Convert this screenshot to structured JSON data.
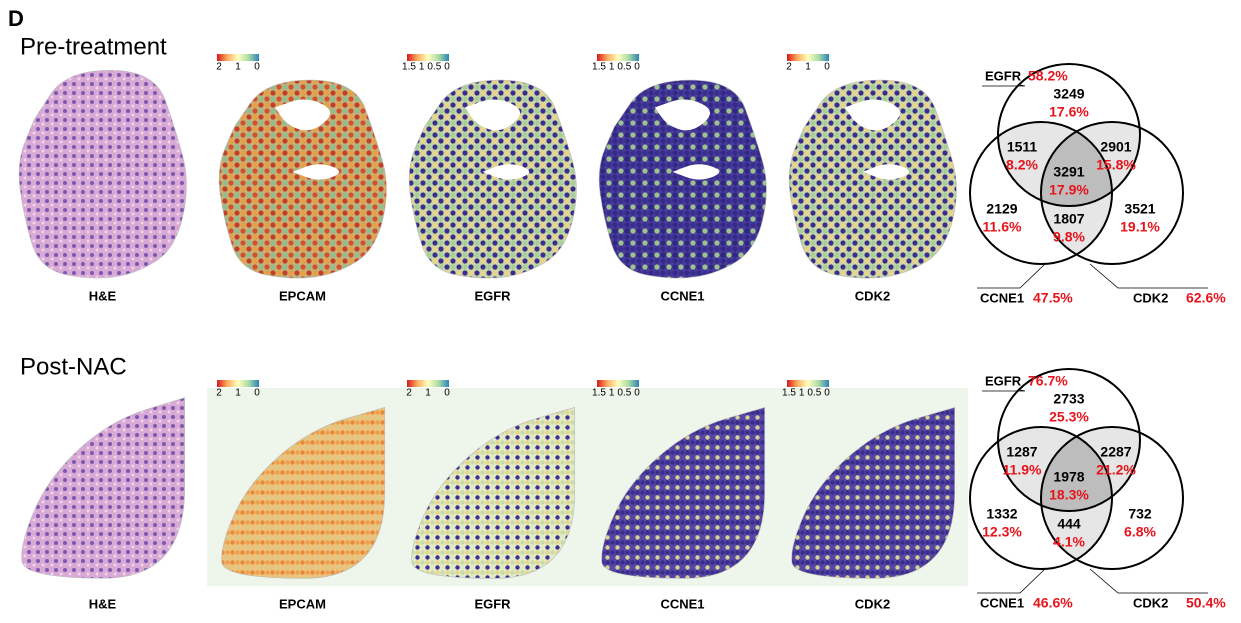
{
  "panel_label": "D",
  "rows": [
    {
      "title": "Pre-treatment",
      "images": [
        {
          "label": "H&E"
        },
        {
          "label": "EPCAM",
          "scale": [
            "2",
            "1",
            "0"
          ]
        },
        {
          "label": "EGFR",
          "scale": [
            "1.5",
            "1",
            "0.5",
            "0"
          ]
        },
        {
          "label": "CCNE1",
          "scale": [
            "1.5",
            "1",
            "0.5",
            "0"
          ]
        },
        {
          "label": "CDK2",
          "scale": [
            "2",
            "1",
            "0"
          ]
        }
      ],
      "venn": {
        "sets": [
          {
            "name": "EGFR",
            "percent": "58.2%"
          },
          {
            "name": "CCNE1",
            "percent": "47.5%"
          },
          {
            "name": "CDK2",
            "percent": "62.6%"
          }
        ],
        "regions": [
          {
            "count": "3249",
            "percent": "17.6%"
          },
          {
            "count": "1511",
            "percent": "8.2%"
          },
          {
            "count": "2901",
            "percent": "15.8%"
          },
          {
            "count": "3291",
            "percent": "17.9%"
          },
          {
            "count": "2129",
            "percent": "11.6%"
          },
          {
            "count": "1807",
            "percent": "9.8%"
          },
          {
            "count": "3521",
            "percent": "19.1%"
          }
        ]
      }
    },
    {
      "title": "Post-NAC",
      "images": [
        {
          "label": "H&E"
        },
        {
          "label": "EPCAM",
          "scale": [
            "2",
            "1",
            "0"
          ]
        },
        {
          "label": "EGFR",
          "scale": [
            "2",
            "1",
            "0"
          ]
        },
        {
          "label": "CCNE1",
          "scale": [
            "1.5",
            "1",
            "0.5",
            "0"
          ]
        },
        {
          "label": "CDK2",
          "scale": [
            "1.5",
            "1",
            "0.5",
            "0"
          ]
        }
      ],
      "venn": {
        "sets": [
          {
            "name": "EGFR",
            "percent": "76.7%"
          },
          {
            "name": "CCNE1",
            "percent": "46.6%"
          },
          {
            "name": "CDK2",
            "percent": "50.4%"
          }
        ],
        "regions": [
          {
            "count": "2733",
            "percent": "25.3%"
          },
          {
            "count": "1287",
            "percent": "11.9%"
          },
          {
            "count": "2287",
            "percent": "21.2%"
          },
          {
            "count": "1978",
            "percent": "18.3%"
          },
          {
            "count": "1332",
            "percent": "12.3%"
          },
          {
            "count": "444",
            "percent": "4.1%"
          },
          {
            "count": "732",
            "percent": "6.8%"
          }
        ]
      }
    }
  ]
}
